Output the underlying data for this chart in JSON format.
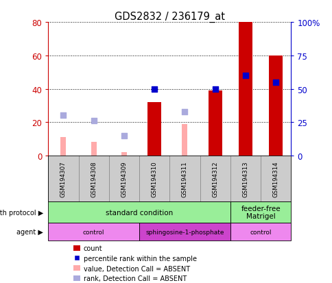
{
  "title": "GDS2832 / 236179_at",
  "samples": [
    "GSM194307",
    "GSM194308",
    "GSM194309",
    "GSM194310",
    "GSM194311",
    "GSM194312",
    "GSM194313",
    "GSM194314"
  ],
  "count_values": [
    null,
    null,
    null,
    32,
    null,
    39,
    80,
    60
  ],
  "count_color": "#cc0000",
  "value_absent": [
    11,
    8,
    2,
    null,
    19,
    null,
    null,
    null
  ],
  "value_absent_color": "#ffaaaa",
  "rank_absent": [
    30,
    26,
    15,
    null,
    33,
    null,
    null,
    null
  ],
  "rank_absent_color": "#aaaadd",
  "percentile_present": [
    null,
    null,
    null,
    50,
    null,
    50,
    60,
    55
  ],
  "percentile_color": "#0000cc",
  "left_ylim": [
    0,
    80
  ],
  "right_ylim": [
    0,
    100
  ],
  "left_yticks": [
    0,
    20,
    40,
    60,
    80
  ],
  "right_yticks": [
    0,
    25,
    50,
    75,
    100
  ],
  "right_yticklabels": [
    "0",
    "25",
    "50",
    "75",
    "100%"
  ],
  "left_yticklabels": [
    "0",
    "20",
    "40",
    "60",
    "80"
  ],
  "gp_groups": [
    {
      "label": "standard condition",
      "start": 0,
      "end": 6,
      "color": "#99ee99"
    },
    {
      "label": "feeder-free\nMatrigel",
      "start": 6,
      "end": 8,
      "color": "#99ee99"
    }
  ],
  "agent_groups": [
    {
      "label": "control",
      "start": 0,
      "end": 3,
      "color": "#ee88ee"
    },
    {
      "label": "sphingosine-1-phosphate",
      "start": 3,
      "end": 6,
      "color": "#cc44cc"
    },
    {
      "label": "control",
      "start": 6,
      "end": 8,
      "color": "#ee88ee"
    }
  ],
  "sample_bg": "#cccccc",
  "sample_border": "#888888"
}
